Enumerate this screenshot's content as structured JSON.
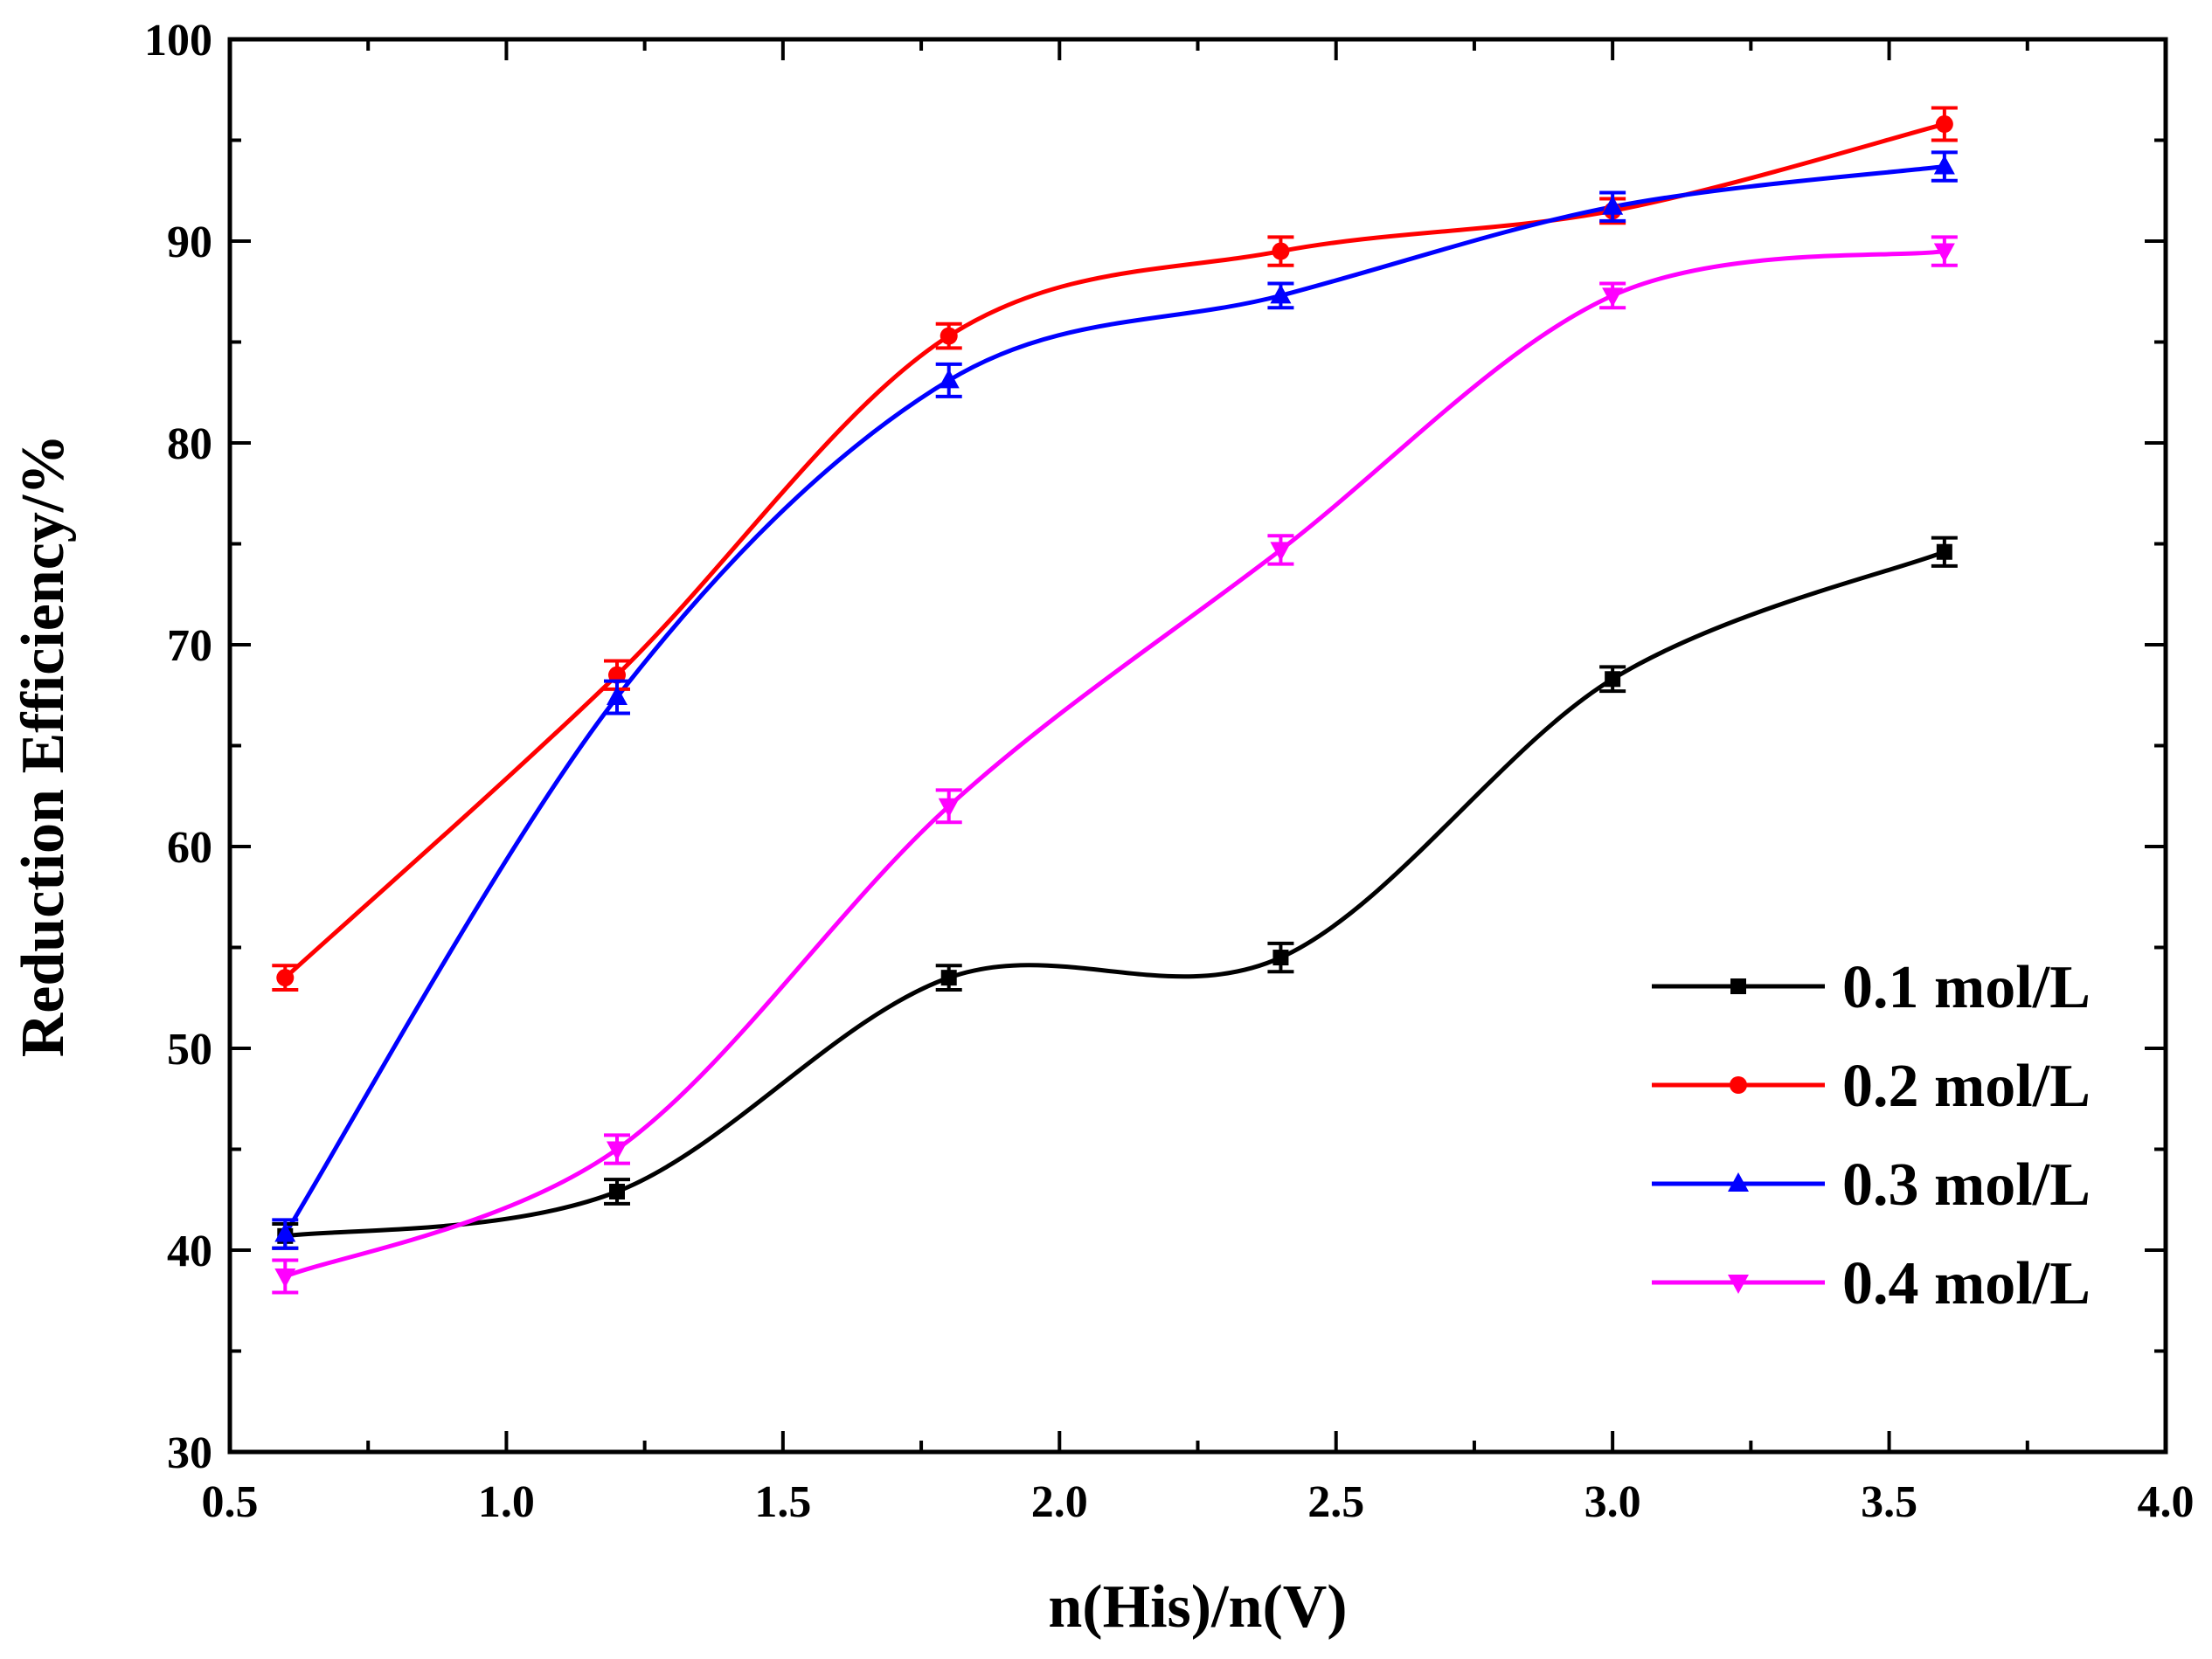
{
  "chart_data": {
    "type": "line",
    "title": "",
    "xlabel": "n(His)/n(V)",
    "ylabel": "Reduction Efficiency/%",
    "xlim": [
      0.5,
      4.0
    ],
    "ylim": [
      30,
      100
    ],
    "x_ticks": [
      0.5,
      1.0,
      1.5,
      2.0,
      2.5,
      3.0,
      3.5,
      4.0
    ],
    "x_tick_labels": [
      "0.5",
      "1.0",
      "1.5",
      "2.0",
      "2.5",
      "3.0",
      "3.5",
      "4.0"
    ],
    "y_ticks": [
      30,
      40,
      50,
      60,
      70,
      80,
      90,
      100
    ],
    "y_tick_labels": [
      "30",
      "40",
      "50",
      "60",
      "70",
      "80",
      "90",
      "100"
    ],
    "grid": false,
    "legend_position": "bottom-right",
    "x": [
      0.6,
      1.2,
      1.8,
      2.4,
      3.0,
      3.6
    ],
    "series": [
      {
        "name": "0.1 mol/L",
        "color": "#000000",
        "marker": "square",
        "values": [
          40.7,
          42.9,
          53.5,
          54.5,
          68.3,
          74.6
        ],
        "errors": [
          0.6,
          0.6,
          0.6,
          0.7,
          0.6,
          0.7
        ]
      },
      {
        "name": "0.2 mol/L",
        "color": "#ff0000",
        "marker": "circle",
        "values": [
          53.5,
          68.5,
          85.3,
          89.5,
          91.5,
          95.8
        ],
        "errors": [
          0.6,
          0.7,
          0.6,
          0.7,
          0.6,
          0.8
        ]
      },
      {
        "name": "0.3 mol/L",
        "color": "#0000ff",
        "marker": "triangle-up",
        "values": [
          40.8,
          67.4,
          83.1,
          87.3,
          91.7,
          93.7
        ],
        "errors": [
          0.7,
          0.8,
          0.8,
          0.6,
          0.7,
          0.7
        ]
      },
      {
        "name": "0.4 mol/L",
        "color": "#ff00ff",
        "marker": "triangle-down",
        "values": [
          38.7,
          45.0,
          62.0,
          74.7,
          87.3,
          89.5
        ],
        "errors": [
          0.8,
          0.7,
          0.8,
          0.7,
          0.6,
          0.7
        ]
      }
    ]
  }
}
